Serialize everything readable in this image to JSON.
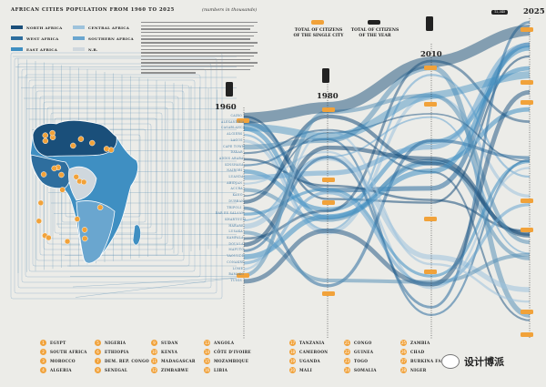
{
  "header": {
    "title": "AFRICAN CITIES POPULATION FROM 1960 TO 2025",
    "unit_note": "(numbers in thousands)"
  },
  "legend": [
    {
      "label": "NORTH AFRICA",
      "color": "#1a4f7a"
    },
    {
      "label": "CENTRAL AFRICA",
      "color": "#9ec3dc"
    },
    {
      "label": "WEST AFRICA",
      "color": "#2e6e9e"
    },
    {
      "label": "SOUTHERN AFRICA",
      "color": "#6aa6cf"
    },
    {
      "label": "EAST AFRICA",
      "color": "#3f8fc2"
    },
    {
      "label": "N.R.",
      "color": "#cfd7dd"
    }
  ],
  "key": {
    "single_city": "TOTAL OF CITIZENS OF THE SINGLE CITY",
    "year_total": "TOTAL OF CITIZENS OF THE YEAR",
    "single_color": "#f1a23a",
    "year_color": "#222222"
  },
  "years": [
    "1960",
    "1980",
    "2010",
    "2025"
  ],
  "cities": [
    "CAIRO",
    "ALEXANDRIA",
    "CASABLANCA",
    "ALGIERS",
    "LAGOS",
    "CAPE TOWN",
    "DAKAR",
    "ADDIS ABABA",
    "KINSHASA",
    "NAIROBI",
    "LUANDA",
    "ABIDJAN",
    "ACCRA",
    "KANO",
    "DURBAN",
    "TRIPOLI",
    "DAR ES SALAAM",
    "KHARTOUM",
    "HARARE",
    "LUSAKA",
    "KAMPALA",
    "DOUALA",
    "MAPUTO",
    "YAOUNDE",
    "CONAKRY",
    "LOME",
    "BAMAKO",
    "TUNIS"
  ],
  "countries": [
    [
      "1",
      "EGYPT"
    ],
    [
      "2",
      "SOUTH AFRICA"
    ],
    [
      "3",
      "MOROCCO"
    ],
    [
      "4",
      "ALGERIA"
    ],
    [
      "5",
      "NIGERIA"
    ],
    [
      "6",
      "ETHIOPIA"
    ],
    [
      "7",
      "DEM. REP. CONGO"
    ],
    [
      "8",
      "SENEGAL"
    ],
    [
      "9",
      "SUDAN"
    ],
    [
      "10",
      "KENYA"
    ],
    [
      "11",
      "MADAGASCAR"
    ],
    [
      "12",
      "ZIMBABWE"
    ],
    [
      "13",
      "ANGOLA"
    ],
    [
      "14",
      "CÔTE D'IVOIRE"
    ],
    [
      "15",
      "MOZAMBIQUE"
    ],
    [
      "16",
      "LIBIA"
    ],
    [
      "17",
      "TANZANIA"
    ],
    [
      "18",
      "CAMEROON"
    ],
    [
      "19",
      "UGANDA"
    ],
    [
      "20",
      "MALI"
    ],
    [
      "21",
      "CONGO"
    ],
    [
      "22",
      "GUINEA"
    ],
    [
      "23",
      "TOGO"
    ],
    [
      "24",
      "SOMALIA"
    ],
    [
      "25",
      "ZAMBIA"
    ],
    [
      "26",
      "CHAD"
    ],
    [
      "27",
      "BURKINA FASO"
    ],
    [
      "28",
      "NIGER"
    ]
  ],
  "watermark": "设计博派",
  "badge": "12,345"
}
